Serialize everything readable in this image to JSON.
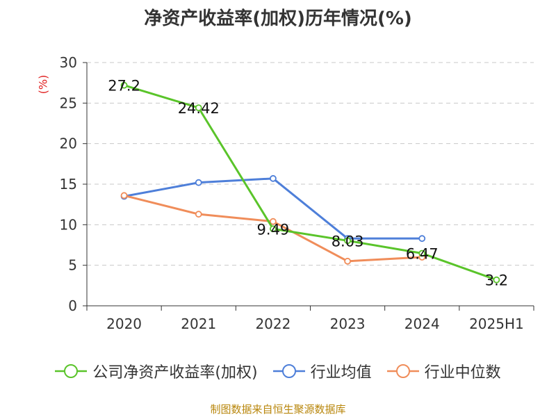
{
  "chart_data": {
    "type": "line",
    "title": "净资产收益率(加权)历年情况(%)",
    "ylabel": "(%)",
    "xlabel": "",
    "categories": [
      "2020",
      "2021",
      "2022",
      "2023",
      "2024",
      "2025H1"
    ],
    "ylim": [
      0,
      30
    ],
    "yticks": [
      0,
      5,
      10,
      15,
      20,
      25,
      30
    ],
    "grid": true,
    "legend_position": "bottom",
    "series": [
      {
        "name": "公司净资产收益率(加权)",
        "color": "#5ac42a",
        "values": [
          27.2,
          24.42,
          9.49,
          8.03,
          6.47,
          3.2
        ],
        "labels": [
          "27.2",
          "24.42",
          "9.49",
          "8.03",
          "6.47",
          "3.2"
        ]
      },
      {
        "name": "行业均值",
        "color": "#4e7fd9",
        "values": [
          13.5,
          15.2,
          15.7,
          8.3,
          8.3,
          null
        ]
      },
      {
        "name": "行业中位数",
        "color": "#f08d5a",
        "values": [
          13.6,
          11.3,
          10.4,
          5.5,
          6.0,
          null
        ]
      }
    ]
  },
  "source": "制图数据来自恒生聚源数据库"
}
